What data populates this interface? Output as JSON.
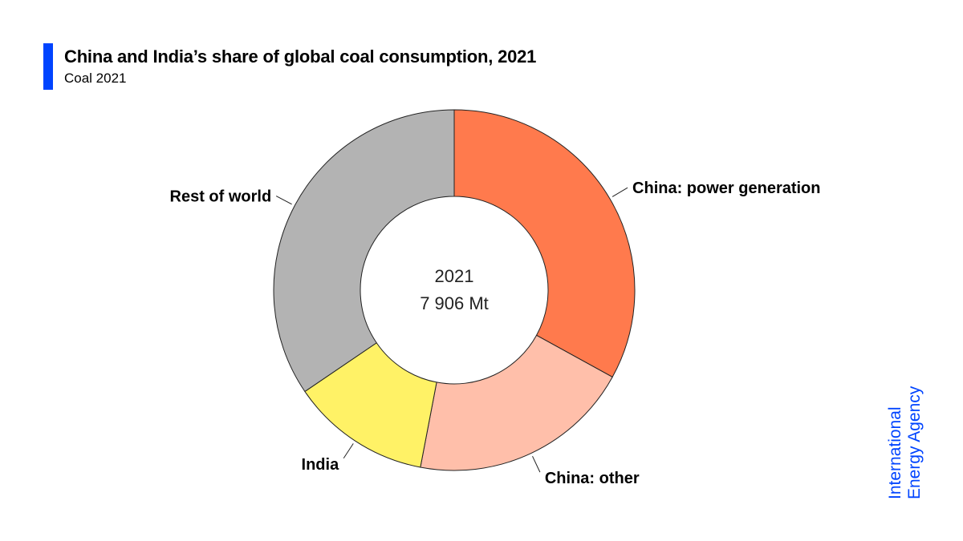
{
  "header": {
    "title": "China and India’s share of global coal consumption, 2021",
    "subtitle": "Coal 2021"
  },
  "colors": {
    "accent": "#0044ff",
    "outline": "#222222"
  },
  "center": {
    "year": "2021",
    "total": "7 906 Mt"
  },
  "logo": {
    "line1": "International",
    "line2": "Energy Agency"
  },
  "chart_data": {
    "type": "pie",
    "title": "China and India’s share of global coal consumption, 2021",
    "subtitle": "Coal 2021",
    "center_label": [
      "2021",
      "7 906 Mt"
    ],
    "unit": "%",
    "slices": [
      {
        "name": "China: power generation",
        "value": 33.0,
        "color": "#ff7a4d",
        "label_side": "right"
      },
      {
        "name": "China: other",
        "value": 20.0,
        "color": "#ffbfaa",
        "label_side": "right"
      },
      {
        "name": "India",
        "value": 12.5,
        "color": "#fff266",
        "label_side": "left"
      },
      {
        "name": "Rest of world",
        "value": 34.5,
        "color": "#b3b3b3",
        "label_side": "left"
      }
    ]
  }
}
